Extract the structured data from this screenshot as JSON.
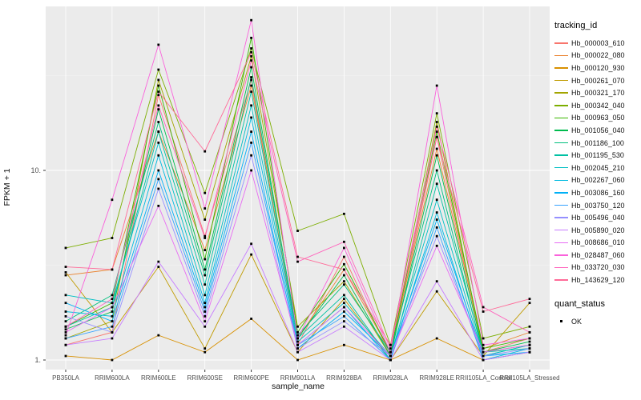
{
  "figure": {
    "bg_color": "#ffffff",
    "panel_color": "#EBEBEB",
    "grid_major_color": "#FFFFFF",
    "grid_minor_color": "#F5F5F5"
  },
  "legend": {
    "tracking_title": "tracking_id",
    "quant_title": "quant_status",
    "quant_items": [
      {
        "label": "OK"
      }
    ]
  },
  "chart_data": {
    "type": "line",
    "title": "",
    "xlabel": "sample_name",
    "ylabel": "FPKM + 1",
    "y_scale": "log10",
    "ylim": [
      1,
      73
    ],
    "grid": true,
    "legend_position": "right",
    "point_color": "#000000",
    "quant_status": "OK",
    "y_ticks": [
      {
        "value": 1,
        "label": "1."
      },
      {
        "value": 10,
        "label": "10."
      }
    ],
    "categories": [
      "PB350LA",
      "RRIM600LA",
      "RRIM600LE",
      "RRIM600SE",
      "RRIM600PE",
      "RRIM901LA",
      "RRIM928BA",
      "RRIM928LA",
      "RRIM928LE",
      "RRII105LA_Control",
      "RRII105LA_Stressed"
    ],
    "series": [
      {
        "name": "Hb_000003_610",
        "color": "#F8766D",
        "values": [
          1.2,
          1.4,
          25,
          4.5,
          30,
          1.2,
          3.5,
          1.05,
          15,
          1.1,
          1.3
        ]
      },
      {
        "name": "Hb_000022_080",
        "color": "#EA8331",
        "values": [
          2.8,
          3.0,
          16,
          3.8,
          28,
          1.3,
          3.0,
          1.1,
          13,
          1.15,
          1.4
        ]
      },
      {
        "name": "Hb_000120_930",
        "color": "#D89000",
        "values": [
          1.05,
          1.0,
          1.35,
          1.1,
          1.65,
          1.0,
          1.2,
          1.0,
          1.3,
          1.0,
          1.1
        ]
      },
      {
        "name": "Hb_000261_070",
        "color": "#C09B00",
        "values": [
          2.9,
          1.4,
          3.1,
          1.15,
          3.6,
          1.1,
          2.1,
          1.0,
          2.3,
          1.05,
          2.0
        ]
      },
      {
        "name": "Hb_000321_170",
        "color": "#A3A500",
        "values": [
          1.3,
          1.6,
          30,
          5.5,
          40,
          1.5,
          2.6,
          1.05,
          18,
          1.1,
          1.2
        ]
      },
      {
        "name": "Hb_000342_040",
        "color": "#7CAE00",
        "values": [
          3.9,
          4.4,
          34,
          7.6,
          44,
          4.8,
          5.9,
          1.2,
          20,
          1.3,
          1.5
        ]
      },
      {
        "name": "Hb_000963_050",
        "color": "#39B600",
        "values": [
          1.5,
          2.0,
          28,
          3.4,
          50,
          1.4,
          3.2,
          1.1,
          16,
          1.15,
          1.3
        ]
      },
      {
        "name": "Hb_001056_040",
        "color": "#00BB4E",
        "values": [
          1.45,
          1.8,
          21,
          3.0,
          35,
          1.3,
          2.8,
          1.05,
          12,
          1.1,
          1.25
        ]
      },
      {
        "name": "Hb_001186_100",
        "color": "#00BF7D",
        "values": [
          1.6,
          2.2,
          18,
          2.8,
          31,
          1.35,
          2.5,
          1.1,
          10,
          1.05,
          1.2
        ]
      },
      {
        "name": "Hb_001195_530",
        "color": "#00C1A3",
        "values": [
          1.5,
          1.9,
          16,
          2.5,
          26,
          1.3,
          2.2,
          1.0,
          8.5,
          1.1,
          1.15
        ]
      },
      {
        "name": "Hb_002045_210",
        "color": "#00BFC4",
        "values": [
          2.2,
          2.0,
          14,
          2.2,
          22,
          1.25,
          2.0,
          1.05,
          7,
          1.05,
          1.2
        ]
      },
      {
        "name": "Hb_002267_060",
        "color": "#00BAE0",
        "values": [
          1.8,
          1.7,
          12,
          2.0,
          19,
          1.2,
          1.9,
          1.0,
          6,
          1.0,
          1.15
        ]
      },
      {
        "name": "Hb_003086_160",
        "color": "#00B0F6",
        "values": [
          2.0,
          1.6,
          10,
          1.9,
          16,
          1.15,
          1.8,
          1.05,
          5.5,
          1.05,
          1.1
        ]
      },
      {
        "name": "Hb_003750_120",
        "color": "#35A2FF",
        "values": [
          1.3,
          1.5,
          9,
          1.8,
          14,
          1.2,
          1.7,
          1.0,
          5,
          1.0,
          1.1
        ]
      },
      {
        "name": "Hb_005496_040",
        "color": "#9590FF",
        "values": [
          1.7,
          1.4,
          8,
          1.7,
          12,
          1.15,
          1.6,
          1.05,
          4.5,
          1.05,
          1.15
        ]
      },
      {
        "name": "Hb_005890_020",
        "color": "#C77CFF",
        "values": [
          1.2,
          1.3,
          3.3,
          1.5,
          4.1,
          1.1,
          1.5,
          1.0,
          2.6,
          1.0,
          1.1
        ]
      },
      {
        "name": "Hb_008686_010",
        "color": "#E76BF3",
        "values": [
          1.4,
          1.9,
          6.5,
          1.6,
          10,
          1.2,
          1.9,
          1.05,
          4,
          1.1,
          1.2
        ]
      },
      {
        "name": "Hb_028487_060",
        "color": "#FA62DB",
        "values": [
          1.35,
          7.0,
          46,
          6.3,
          62,
          1.3,
          3.9,
          1.1,
          28,
          1.2,
          1.3
        ]
      },
      {
        "name": "Hb_033720_030",
        "color": "#FF62BC",
        "values": [
          1.5,
          2.1,
          22,
          4.4,
          38,
          3.3,
          4.2,
          1.15,
          17,
          1.9,
          1.4
        ]
      },
      {
        "name": "Hb_143629_120",
        "color": "#FF6A98",
        "values": [
          3.1,
          3.0,
          26,
          12.6,
          42,
          3.5,
          3.0,
          1.2,
          15,
          1.8,
          2.1
        ]
      }
    ]
  }
}
